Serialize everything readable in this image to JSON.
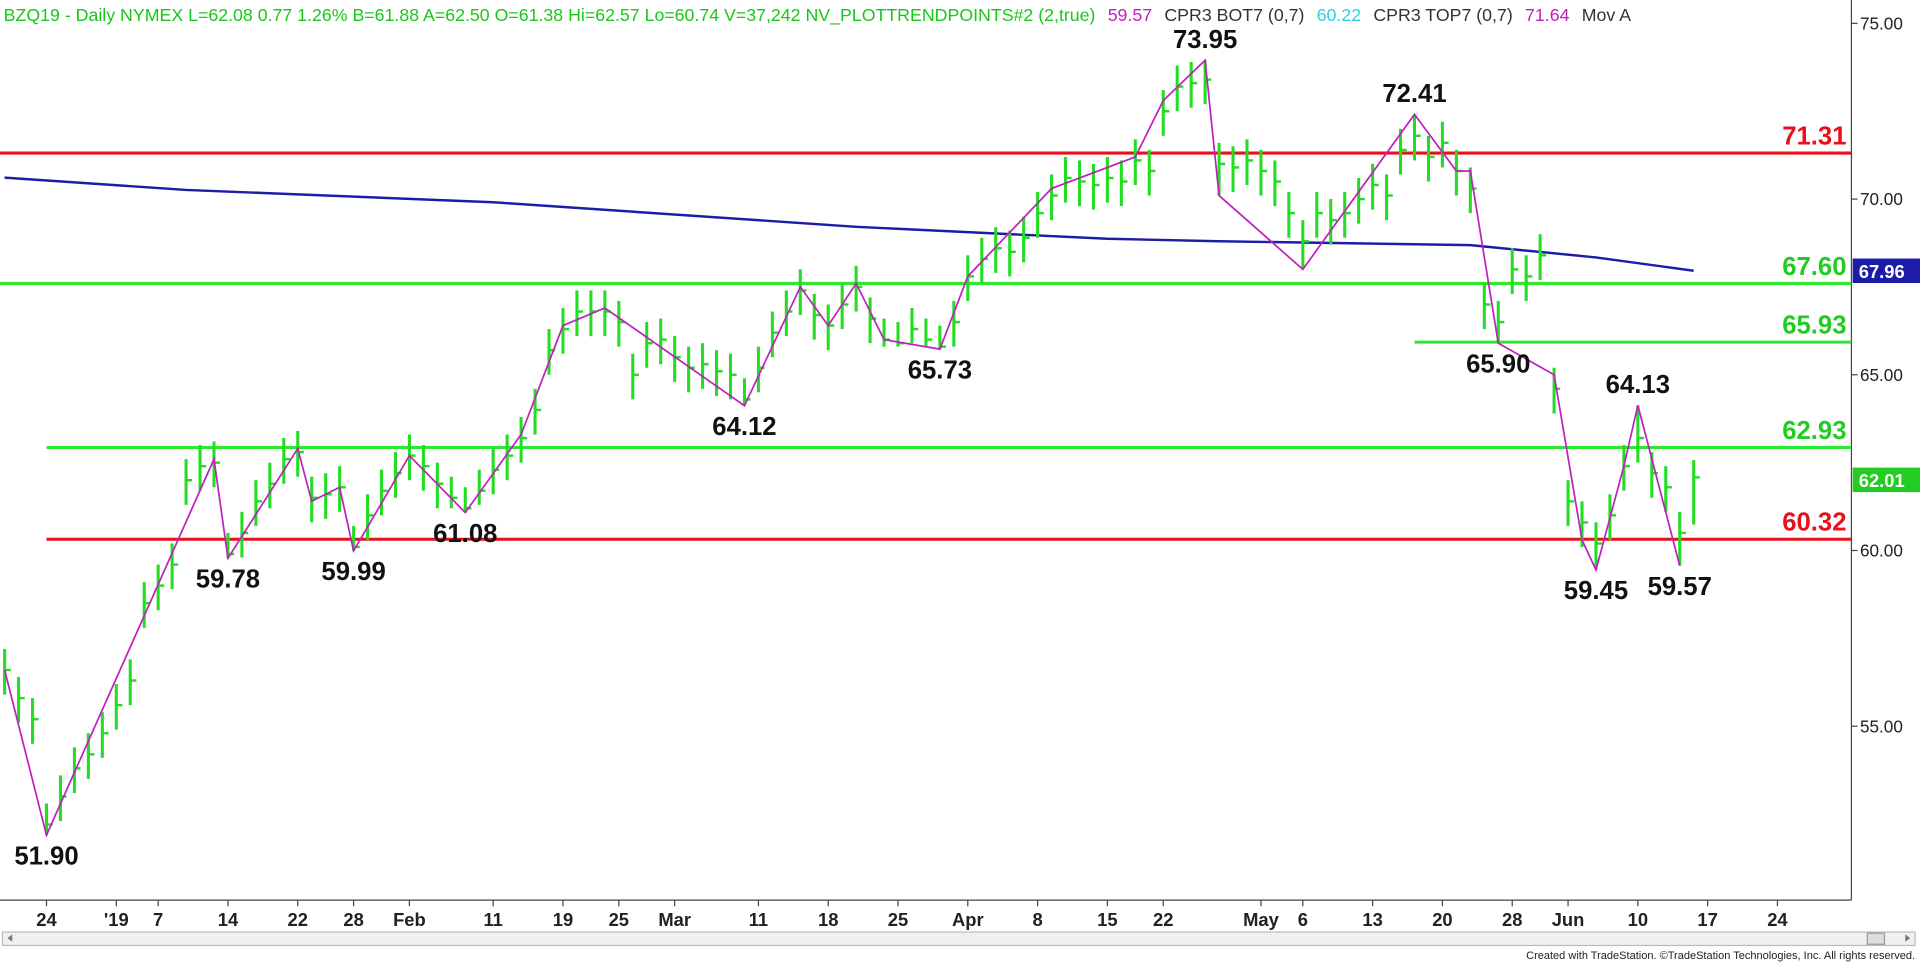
{
  "chart_data": {
    "type": "ohlc",
    "header": [
      {
        "text": "BZQ19 - Daily  NYMEX  L=62.08  0.77  1.26%  B=61.88  A=62.50  O=61.38  Hi=62.57  Lo=60.74  V=37,242  NV_PLOTTRENDPOINTS#2 (2,true)",
        "color": "#18c818"
      },
      {
        "text": "59.57",
        "color": "#c020c0"
      },
      {
        "text": "CPR3 BOT7 (0,7)",
        "color": "#333333"
      },
      {
        "text": "60.22",
        "color": "#30d0e0"
      },
      {
        "text": "CPR3 TOP7 (0,7)",
        "color": "#333333"
      },
      {
        "text": "71.64",
        "color": "#c020c0"
      },
      {
        "text": "Mov A",
        "color": "#333333"
      }
    ],
    "footer": "Created with TradeStation. ©TradeStation Technologies, Inc. All rights reserved.",
    "xlim": [
      -3.33,
      129.3
    ],
    "xticks": [
      {
        "value": 0,
        "label": "24"
      },
      {
        "value": 5,
        "label": "'19"
      },
      {
        "value": 8,
        "label": "7"
      },
      {
        "value": 13,
        "label": "14"
      },
      {
        "value": 18,
        "label": "22"
      },
      {
        "value": 22,
        "label": "28"
      },
      {
        "value": 26,
        "label": "Feb"
      },
      {
        "value": 32,
        "label": "11"
      },
      {
        "value": 37,
        "label": "19"
      },
      {
        "value": 41,
        "label": "25"
      },
      {
        "value": 45,
        "label": "Mar"
      },
      {
        "value": 51,
        "label": "11"
      },
      {
        "value": 56,
        "label": "18"
      },
      {
        "value": 61,
        "label": "25"
      },
      {
        "value": 66,
        "label": "Apr"
      },
      {
        "value": 71,
        "label": "8"
      },
      {
        "value": 76,
        "label": "15"
      },
      {
        "value": 80,
        "label": "22"
      },
      {
        "value": 87,
        "label": "May"
      },
      {
        "value": 90,
        "label": "6"
      },
      {
        "value": 95,
        "label": "13"
      },
      {
        "value": 100,
        "label": "20"
      },
      {
        "value": 105,
        "label": "28"
      },
      {
        "value": 109,
        "label": "Jun"
      },
      {
        "value": 114,
        "label": "10"
      },
      {
        "value": 119,
        "label": "17"
      },
      {
        "value": 124,
        "label": "24"
      }
    ],
    "ylim": [
      50.05,
      75.66
    ],
    "yticks": [
      {
        "value": 75,
        "label": "75.00"
      },
      {
        "value": 70,
        "label": "70.00"
      },
      {
        "value": 65,
        "label": "65.00"
      },
      {
        "value": 60,
        "label": "60.00"
      },
      {
        "value": 55,
        "label": "55.00"
      }
    ],
    "bars": {
      "color": "#22dd22",
      "x": [
        -3,
        -2,
        -1,
        0,
        1,
        2,
        3,
        4,
        5,
        6,
        7,
        8,
        9,
        10,
        11,
        12,
        13,
        14,
        15,
        16,
        17,
        18,
        19,
        20,
        21,
        22,
        23,
        24,
        25,
        26,
        27,
        28,
        29,
        30,
        31,
        32,
        33,
        34,
        35,
        36,
        37,
        38,
        39,
        40,
        41,
        42,
        43,
        44,
        45,
        46,
        47,
        48,
        49,
        50,
        51,
        52,
        53,
        54,
        55,
        56,
        57,
        58,
        59,
        60,
        61,
        62,
        63,
        64,
        65,
        66,
        67,
        68,
        69,
        70,
        71,
        72,
        73,
        74,
        75,
        76,
        77,
        78,
        79,
        80,
        81,
        82,
        83,
        84,
        85,
        86,
        87,
        88,
        89,
        90,
        91,
        92,
        93,
        94,
        95,
        96,
        97,
        98,
        99,
        100,
        101,
        102,
        103,
        104,
        105,
        106,
        107,
        108,
        109,
        110,
        111,
        112,
        113,
        114,
        115,
        116,
        117,
        118
      ],
      "high": [
        57.2,
        56.4,
        55.8,
        52.8,
        53.6,
        54.4,
        54.8,
        55.4,
        56.2,
        56.9,
        59.1,
        59.6,
        60.2,
        62.6,
        63.0,
        63.1,
        60.5,
        61.1,
        62.0,
        62.5,
        63.2,
        63.4,
        62.1,
        62.2,
        62.4,
        60.7,
        61.6,
        62.3,
        62.8,
        63.3,
        63.0,
        62.5,
        62.1,
        61.8,
        62.3,
        62.9,
        63.3,
        63.8,
        64.6,
        66.3,
        66.9,
        67.4,
        67.4,
        67.4,
        67.1,
        65.6,
        66.5,
        66.6,
        66.1,
        65.8,
        65.9,
        65.7,
        65.6,
        64.9,
        65.8,
        66.8,
        67.4,
        68.0,
        67.3,
        67.0,
        67.6,
        68.1,
        67.2,
        66.6,
        66.5,
        66.9,
        66.6,
        66.4,
        67.1,
        68.4,
        68.9,
        69.2,
        69.1,
        69.5,
        70.2,
        70.7,
        71.2,
        71.1,
        71.0,
        71.2,
        71.1,
        71.7,
        71.4,
        73.1,
        73.8,
        73.9,
        73.95,
        71.6,
        71.5,
        71.7,
        71.4,
        71.1,
        70.2,
        69.4,
        70.2,
        70.0,
        70.2,
        70.6,
        71.0,
        70.7,
        72.0,
        72.41,
        71.8,
        72.2,
        71.4,
        70.9,
        67.6,
        67.1,
        68.6,
        68.4,
        69.0,
        65.2,
        62.0,
        61.4,
        60.8,
        61.6,
        63.0,
        64.13,
        62.8,
        62.4,
        61.1,
        62.57
      ],
      "low": [
        55.9,
        55.1,
        54.5,
        51.9,
        52.3,
        53.1,
        53.5,
        54.1,
        54.9,
        55.6,
        57.8,
        58.3,
        58.9,
        61.3,
        61.7,
        61.8,
        59.78,
        59.8,
        60.7,
        61.2,
        61.9,
        62.1,
        60.8,
        60.9,
        61.1,
        59.99,
        60.3,
        61.0,
        61.5,
        62.0,
        61.7,
        61.2,
        61.2,
        61.08,
        61.3,
        61.6,
        62.0,
        62.5,
        63.3,
        65.0,
        65.6,
        66.1,
        66.1,
        66.1,
        65.8,
        64.3,
        65.2,
        65.3,
        64.8,
        64.5,
        64.6,
        64.4,
        64.3,
        64.12,
        64.5,
        65.5,
        66.1,
        66.7,
        66.0,
        65.7,
        66.3,
        66.8,
        65.9,
        65.8,
        65.8,
        65.9,
        65.8,
        65.73,
        65.8,
        67.1,
        67.6,
        67.9,
        67.8,
        68.2,
        68.9,
        69.4,
        69.9,
        69.8,
        69.7,
        69.9,
        69.8,
        70.4,
        70.1,
        71.8,
        72.5,
        72.6,
        72.7,
        70.1,
        70.2,
        70.4,
        70.1,
        69.8,
        68.9,
        68.0,
        68.9,
        68.7,
        68.9,
        69.3,
        69.7,
        69.4,
        70.7,
        71.1,
        70.5,
        70.9,
        70.1,
        69.6,
        66.3,
        65.9,
        67.3,
        67.1,
        67.7,
        63.9,
        60.7,
        60.1,
        59.45,
        60.3,
        61.7,
        62.5,
        61.5,
        61.1,
        59.57,
        60.74
      ],
      "close": [
        56.6,
        55.8,
        55.2,
        52.2,
        53.0,
        53.8,
        54.2,
        54.8,
        55.6,
        56.3,
        58.5,
        59.0,
        59.6,
        62.0,
        62.4,
        62.5,
        59.9,
        60.5,
        61.4,
        61.9,
        62.6,
        62.8,
        61.5,
        61.6,
        61.8,
        60.1,
        61.0,
        61.7,
        62.2,
        62.7,
        62.4,
        61.9,
        61.5,
        61.2,
        61.7,
        62.3,
        62.7,
        63.2,
        64.0,
        65.7,
        66.3,
        66.8,
        66.8,
        66.8,
        66.5,
        65.0,
        65.9,
        66.0,
        65.5,
        65.2,
        65.3,
        65.1,
        65.0,
        64.3,
        65.2,
        66.2,
        66.8,
        67.4,
        66.7,
        66.4,
        67.0,
        67.5,
        66.6,
        66.0,
        65.9,
        66.3,
        66.0,
        65.8,
        66.5,
        67.8,
        68.3,
        68.6,
        68.5,
        68.9,
        69.6,
        70.1,
        70.6,
        70.5,
        70.4,
        70.6,
        70.5,
        71.1,
        70.8,
        72.5,
        73.2,
        73.3,
        73.4,
        71.0,
        70.9,
        71.1,
        70.8,
        70.5,
        69.6,
        68.8,
        69.6,
        69.4,
        69.6,
        70.0,
        70.4,
        70.1,
        71.4,
        71.8,
        71.2,
        71.6,
        70.8,
        70.3,
        67.0,
        66.5,
        68.0,
        67.8,
        68.4,
        64.6,
        61.4,
        60.8,
        60.2,
        61.0,
        62.4,
        63.2,
        62.2,
        61.8,
        60.5,
        62.08
      ]
    },
    "moving_average": {
      "color": "#1c1ca8",
      "x": [
        -3,
        10,
        32,
        58,
        76,
        84,
        102,
        111,
        118
      ],
      "values": [
        70.61,
        70.26,
        69.91,
        69.21,
        68.87,
        68.8,
        68.69,
        68.34,
        67.96
      ]
    },
    "trend_line": {
      "color": "#c020c0",
      "x": [
        -3,
        0,
        12,
        13,
        18,
        19,
        21,
        22,
        26,
        30,
        34,
        37,
        40,
        50,
        54,
        56,
        58,
        60,
        64,
        66,
        72,
        78,
        80,
        83,
        84,
        90,
        98,
        101,
        102,
        104,
        108,
        110,
        111,
        113,
        114,
        117
      ],
      "values": [
        56.6,
        51.9,
        62.6,
        59.78,
        62.9,
        61.4,
        61.8,
        59.99,
        62.7,
        61.08,
        63.3,
        66.4,
        66.9,
        64.12,
        67.5,
        66.4,
        67.6,
        66.0,
        65.73,
        67.8,
        70.3,
        71.2,
        72.8,
        73.95,
        70.1,
        68.0,
        72.41,
        70.8,
        70.8,
        65.9,
        65.0,
        60.3,
        59.45,
        62.4,
        64.13,
        59.57
      ]
    },
    "pivot_labels": [
      {
        "x": 0,
        "value": 51.9,
        "label": "51.90"
      },
      {
        "x": 13,
        "value": 59.78,
        "label": "59.78"
      },
      {
        "x": 22,
        "value": 59.99,
        "label": "59.99"
      },
      {
        "x": 30,
        "value": 61.08,
        "label": "61.08"
      },
      {
        "x": 50,
        "value": 64.12,
        "label": "64.12"
      },
      {
        "x": 64,
        "value": 65.73,
        "label": "65.73"
      },
      {
        "x": 83,
        "value": 73.95,
        "label": "73.95"
      },
      {
        "x": 98,
        "value": 72.41,
        "label": "72.41"
      },
      {
        "x": 104,
        "value": 65.9,
        "label": "65.90"
      },
      {
        "x": 111,
        "value": 59.45,
        "label": "59.45"
      },
      {
        "x": 114,
        "value": 64.13,
        "label": "64.13"
      },
      {
        "x": 117,
        "value": 59.57,
        "label": "59.57"
      }
    ],
    "levels": [
      {
        "value": 71.31,
        "label": "71.31",
        "color": "#e8101a"
      },
      {
        "value": 67.6,
        "label": "67.60",
        "color": "#2ee82e"
      },
      {
        "value": 65.93,
        "label": "65.93",
        "color": "#2ee82e",
        "from": 98
      },
      {
        "value": 62.93,
        "label": "62.93",
        "color": "#2ee82e",
        "from": 0
      },
      {
        "value": 60.32,
        "label": "60.32",
        "color": "#e8101a",
        "from": 0
      }
    ],
    "last_values": [
      {
        "value": 67.96,
        "label": "67.96",
        "color": "#1c1ca8"
      },
      {
        "value": 62.01,
        "label": "62.01",
        "color": "#22cc22"
      }
    ]
  }
}
